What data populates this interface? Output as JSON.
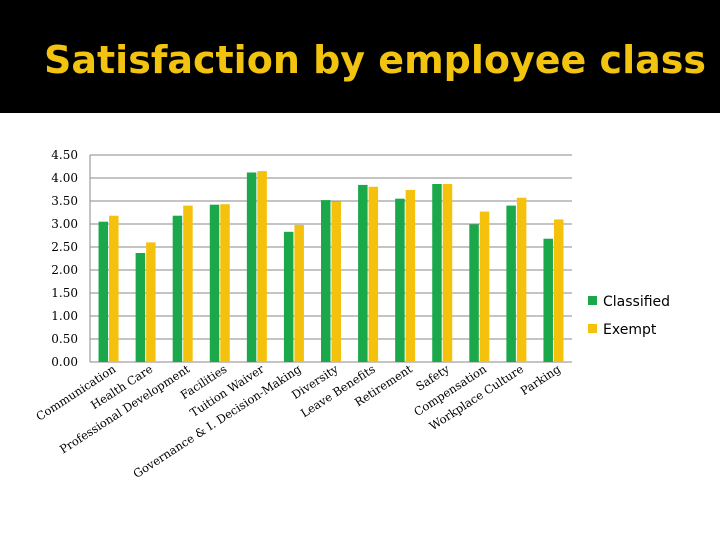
{
  "title": "Satisfaction by employee class",
  "chart_data": {
    "type": "bar",
    "title": "",
    "xlabel": "",
    "ylabel": "",
    "ylim": [
      0,
      4.5
    ],
    "yticks": [
      "0.00",
      "0.50",
      "1.00",
      "1.50",
      "2.00",
      "2.50",
      "3.00",
      "3.50",
      "4.00",
      "4.50"
    ],
    "grid": true,
    "legend_position": "right",
    "categories": [
      "Communication",
      "Health Care",
      "Professional Development",
      "Facilities",
      "Tuition Waiver",
      "Governance & I. Decision-Making",
      "Diversity",
      "Leave Benefits",
      "Retirement",
      "Safety",
      "Compensation",
      "Workplace Culture",
      "Parking"
    ],
    "series": [
      {
        "name": "Classified",
        "color": "#1aa84a",
        "values": [
          3.05,
          2.37,
          3.18,
          3.42,
          4.12,
          2.83,
          3.52,
          3.85,
          3.55,
          3.87,
          2.99,
          3.4,
          2.68
        ]
      },
      {
        "name": "Exempt",
        "color": "#f4c20d",
        "values": [
          3.18,
          2.6,
          3.4,
          3.43,
          4.15,
          2.98,
          3.49,
          3.81,
          3.74,
          3.87,
          3.27,
          3.57,
          3.1
        ]
      }
    ]
  }
}
